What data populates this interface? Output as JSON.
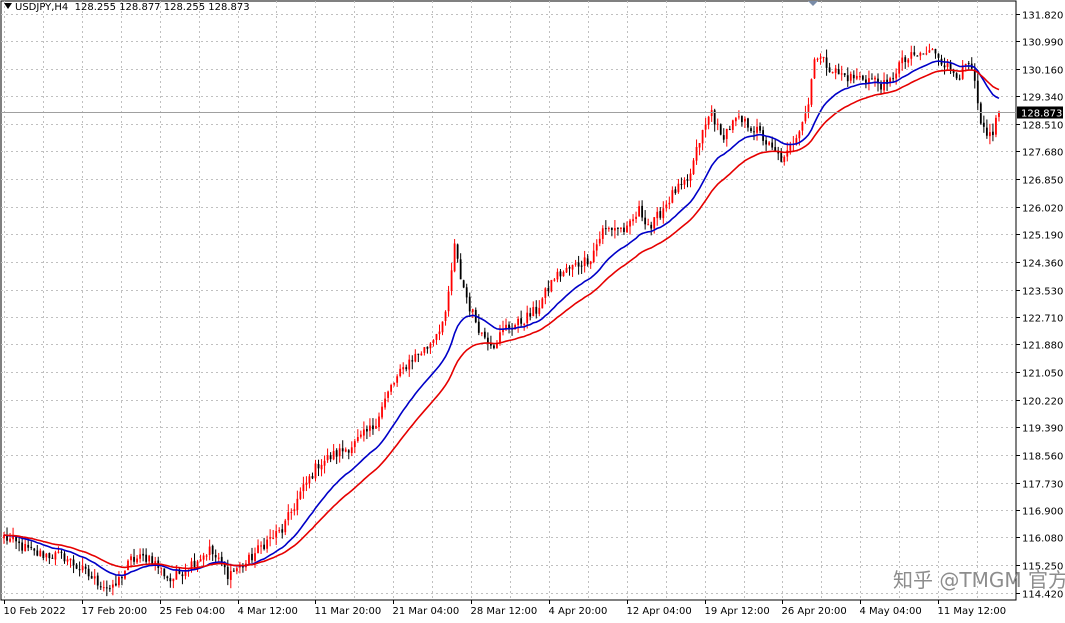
{
  "header": {
    "symbol": "USDJPY,H4",
    "ohlc": "128.255 128.877 128.255 128.873"
  },
  "watermark": "知乎 @TMGM 官方",
  "chart_data": {
    "type": "candlestick",
    "symbol": "USDJPY",
    "timeframe": "H4",
    "current_price": 128.873,
    "y_ticks": [
      131.82,
      130.99,
      130.16,
      129.34,
      128.51,
      127.68,
      126.85,
      126.02,
      125.19,
      124.36,
      123.53,
      122.71,
      121.88,
      121.05,
      120.22,
      119.39,
      118.56,
      117.73,
      116.9,
      116.08,
      115.25,
      114.42
    ],
    "ylim": [
      114.2,
      132.2
    ],
    "x_ticks": [
      "10 Feb 2022",
      "17 Feb 20:00",
      "25 Feb 04:00",
      "4 Mar 12:00",
      "11 Mar 20:00",
      "21 Mar 04:00",
      "28 Mar 12:00",
      "4 Apr 20:00",
      "12 Apr 04:00",
      "19 Apr 12:00",
      "26 Apr 20:00",
      "4 May 04:00",
      "11 May 12:00"
    ],
    "price_keypoints": [
      [
        0,
        116.1
      ],
      [
        10,
        115.6
      ],
      [
        20,
        115.5
      ],
      [
        30,
        114.8
      ],
      [
        36,
        114.5
      ],
      [
        42,
        115.4
      ],
      [
        48,
        115.5
      ],
      [
        55,
        114.8
      ],
      [
        62,
        115.3
      ],
      [
        68,
        115.7
      ],
      [
        74,
        115.0
      ],
      [
        80,
        115.3
      ],
      [
        86,
        115.9
      ],
      [
        92,
        116.3
      ],
      [
        98,
        117.4
      ],
      [
        104,
        118.3
      ],
      [
        110,
        118.6
      ],
      [
        116,
        118.9
      ],
      [
        122,
        119.4
      ],
      [
        128,
        120.6
      ],
      [
        134,
        121.4
      ],
      [
        140,
        121.8
      ],
      [
        146,
        122.7
      ],
      [
        149,
        124.8
      ],
      [
        151,
        123.9
      ],
      [
        154,
        123.0
      ],
      [
        158,
        122.2
      ],
      [
        162,
        121.9
      ],
      [
        166,
        122.4
      ],
      [
        170,
        122.5
      ],
      [
        176,
        122.9
      ],
      [
        182,
        123.9
      ],
      [
        188,
        124.2
      ],
      [
        194,
        124.5
      ],
      [
        198,
        125.3
      ],
      [
        202,
        125.4
      ],
      [
        206,
        125.3
      ],
      [
        210,
        125.9
      ],
      [
        214,
        125.4
      ],
      [
        218,
        126.0
      ],
      [
        222,
        126.5
      ],
      [
        226,
        126.7
      ],
      [
        230,
        128.0
      ],
      [
        234,
        128.9
      ],
      [
        237,
        128.1
      ],
      [
        242,
        128.6
      ],
      [
        246,
        128.5
      ],
      [
        250,
        128.2
      ],
      [
        254,
        127.7
      ],
      [
        258,
        127.4
      ],
      [
        262,
        128.2
      ],
      [
        266,
        129.1
      ],
      [
        268,
        130.6
      ],
      [
        272,
        130.3
      ],
      [
        276,
        130.0
      ],
      [
        280,
        129.9
      ],
      [
        284,
        129.9
      ],
      [
        288,
        129.8
      ],
      [
        292,
        129.6
      ],
      [
        296,
        130.3
      ],
      [
        300,
        130.5
      ],
      [
        304,
        130.6
      ],
      [
        308,
        130.7
      ],
      [
        312,
        130.2
      ],
      [
        316,
        130.0
      ],
      [
        319,
        130.3
      ],
      [
        321,
        129.7
      ],
      [
        323,
        128.4
      ],
      [
        325,
        128.1
      ],
      [
        327,
        128.3
      ],
      [
        329,
        128.873
      ]
    ],
    "series": [
      {
        "type": "candlestick",
        "up_color": "#ff0000",
        "down_color": "#000000"
      },
      {
        "type": "moving_average",
        "color": "#0000c8"
      },
      {
        "type": "moving_average",
        "color": "#e60000"
      }
    ],
    "grid": true,
    "grid_style": "dotted"
  }
}
